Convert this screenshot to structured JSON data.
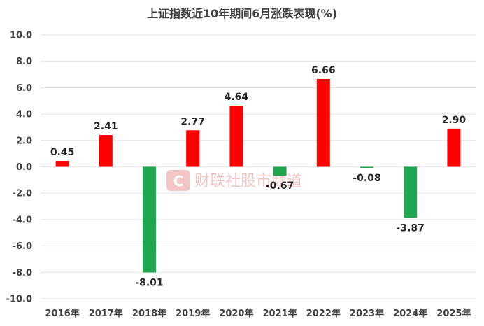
{
  "chart_data": {
    "type": "bar",
    "title": "上证指数近10年期间6月涨跌表现(%)",
    "categories": [
      "2016年",
      "2017年",
      "2018年",
      "2019年",
      "2020年",
      "2021年",
      "2022年",
      "2023年",
      "2024年",
      "2025年"
    ],
    "values": [
      0.45,
      2.41,
      -8.01,
      2.77,
      4.64,
      -0.67,
      6.66,
      -0.08,
      -3.87,
      2.9
    ],
    "data_labels": [
      "0.45",
      "2.41",
      "-8.01",
      "2.77",
      "4.64",
      "-0.67",
      "6.66",
      "-0.08",
      "-3.87",
      "2.90"
    ],
    "y_ticks": [
      "10.0",
      "8.0",
      "6.0",
      "4.0",
      "2.0",
      "0.0",
      "-2.0",
      "-4.0",
      "-6.0",
      "-8.0",
      "-10.0"
    ],
    "ylim": [
      -10,
      10
    ],
    "grid": true,
    "colors": {
      "positive": "#ff0000",
      "negative": "#21a650"
    },
    "watermark": {
      "icon": "cailian-logo-icon",
      "text": "财联社股市频道"
    }
  }
}
